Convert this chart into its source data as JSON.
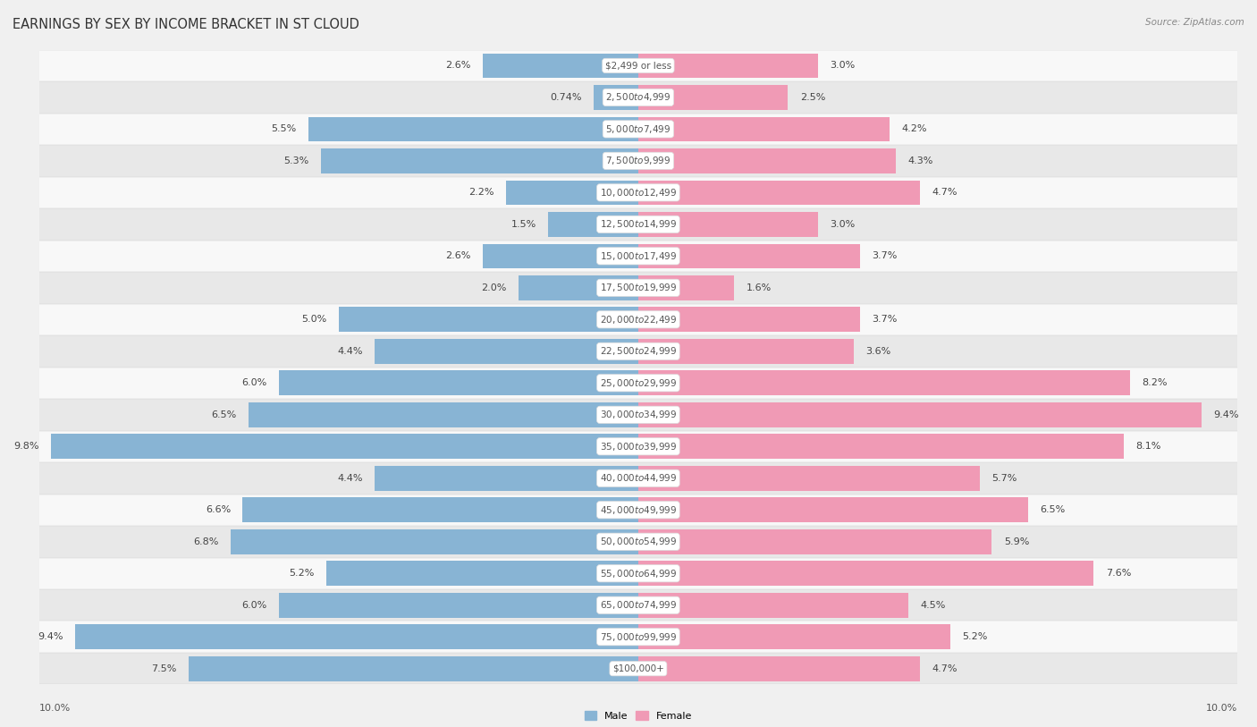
{
  "title": "EARNINGS BY SEX BY INCOME BRACKET IN ST CLOUD",
  "source": "Source: ZipAtlas.com",
  "categories": [
    "$2,499 or less",
    "$2,500 to $4,999",
    "$5,000 to $7,499",
    "$7,500 to $9,999",
    "$10,000 to $12,499",
    "$12,500 to $14,999",
    "$15,000 to $17,499",
    "$17,500 to $19,999",
    "$20,000 to $22,499",
    "$22,500 to $24,999",
    "$25,000 to $29,999",
    "$30,000 to $34,999",
    "$35,000 to $39,999",
    "$40,000 to $44,999",
    "$45,000 to $49,999",
    "$50,000 to $54,999",
    "$55,000 to $64,999",
    "$65,000 to $74,999",
    "$75,000 to $99,999",
    "$100,000+"
  ],
  "male": [
    2.6,
    0.74,
    5.5,
    5.3,
    2.2,
    1.5,
    2.6,
    2.0,
    5.0,
    4.4,
    6.0,
    6.5,
    9.8,
    4.4,
    6.6,
    6.8,
    5.2,
    6.0,
    9.4,
    7.5
  ],
  "female": [
    3.0,
    2.5,
    4.2,
    4.3,
    4.7,
    3.0,
    3.7,
    1.6,
    3.7,
    3.6,
    8.2,
    9.4,
    8.1,
    5.7,
    6.5,
    5.9,
    7.6,
    4.5,
    5.2,
    4.7
  ],
  "male_color": "#88b4d4",
  "female_color": "#f09ab5",
  "male_label": "Male",
  "female_label": "Female",
  "axis_max": 10.0,
  "bg_color": "#f0f0f0",
  "row_bg_light": "#f8f8f8",
  "row_bg_dark": "#e8e8e8",
  "title_fontsize": 10.5,
  "label_fontsize": 8,
  "source_fontsize": 7.5,
  "cat_fontsize": 7.5
}
